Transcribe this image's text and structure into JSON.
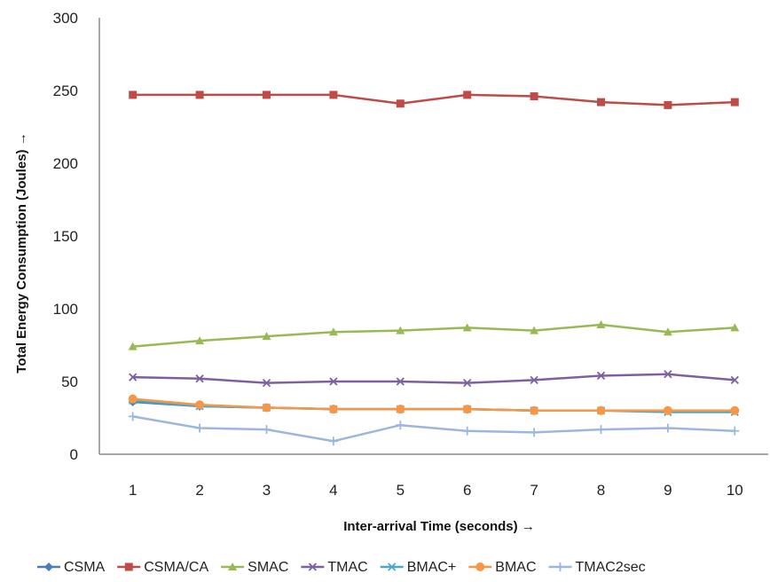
{
  "chart_data": {
    "type": "line",
    "title": "",
    "xlabel": "Inter-arrival Time (seconds) →",
    "ylabel": "Total Energy Consumption (Joules) →",
    "x": [
      1,
      2,
      3,
      4,
      5,
      6,
      7,
      8,
      9,
      10
    ],
    "ylim": [
      0,
      300
    ],
    "yticks": [
      0,
      50,
      100,
      150,
      200,
      250,
      300
    ],
    "grid": false,
    "legend_position": "bottom",
    "series": [
      {
        "name": "CSMA",
        "color": "#4a7ebb",
        "marker": "diamond",
        "values": [
          36,
          33,
          32,
          31,
          31,
          31,
          30,
          30,
          30,
          30
        ]
      },
      {
        "name": "CSMA/CA",
        "color": "#be4b48",
        "marker": "square",
        "values": [
          247,
          247,
          247,
          247,
          241,
          247,
          246,
          242,
          240,
          242
        ]
      },
      {
        "name": "SMAC",
        "color": "#98b954",
        "marker": "triangle",
        "values": [
          74,
          78,
          81,
          84,
          85,
          87,
          85,
          89,
          84,
          87
        ]
      },
      {
        "name": "TMAC",
        "color": "#7d60a0",
        "marker": "x",
        "values": [
          53,
          52,
          49,
          50,
          50,
          49,
          51,
          54,
          55,
          51
        ]
      },
      {
        "name": "BMAC+",
        "color": "#46aac5",
        "marker": "x",
        "values": [
          37,
          33,
          32,
          31,
          31,
          31,
          30,
          30,
          29,
          29
        ]
      },
      {
        "name": "BMAC",
        "color": "#f79646",
        "marker": "circle",
        "values": [
          38,
          34,
          32,
          31,
          31,
          31,
          30,
          30,
          30,
          30
        ]
      },
      {
        "name": "TMAC2sec",
        "color": "#9bb7e0",
        "marker": "plus",
        "values": [
          26,
          18,
          17,
          9,
          20,
          16,
          15,
          17,
          18,
          16
        ]
      }
    ]
  }
}
